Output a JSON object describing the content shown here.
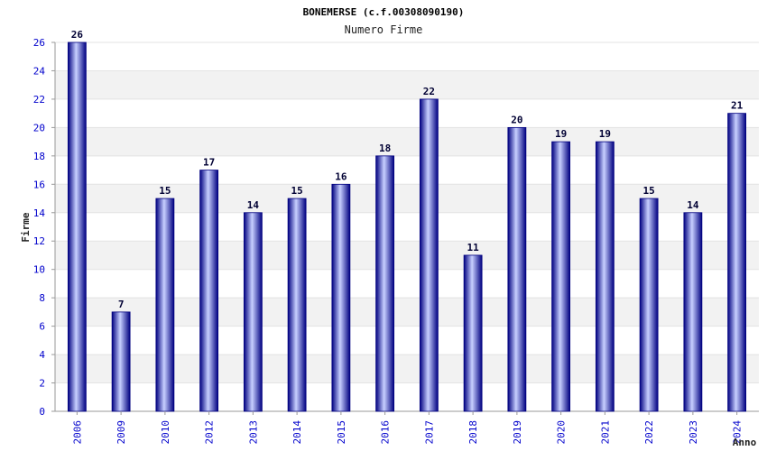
{
  "chart_data": {
    "type": "bar",
    "title": "BONEMERSE (c.f.00308090190)",
    "subtitle": "Numero Firme",
    "xlabel": "Anno",
    "ylabel": "Firme",
    "categories": [
      "2006",
      "2009",
      "2010",
      "2012",
      "2013",
      "2014",
      "2015",
      "2016",
      "2017",
      "2018",
      "2019",
      "2020",
      "2021",
      "2022",
      "2023",
      "2024"
    ],
    "values": [
      26,
      7,
      15,
      17,
      14,
      15,
      16,
      18,
      22,
      11,
      20,
      19,
      19,
      15,
      14,
      21
    ],
    "ylim": [
      0,
      26
    ],
    "yticks": [
      0,
      2,
      4,
      6,
      8,
      10,
      12,
      14,
      16,
      18,
      20,
      22,
      24,
      26
    ],
    "grid": true,
    "colors": {
      "bar_dark": "#000080",
      "bar_light": "#c8d0ff",
      "band_alt": "#f2f2f2",
      "tick_text": "#0000cc"
    }
  }
}
